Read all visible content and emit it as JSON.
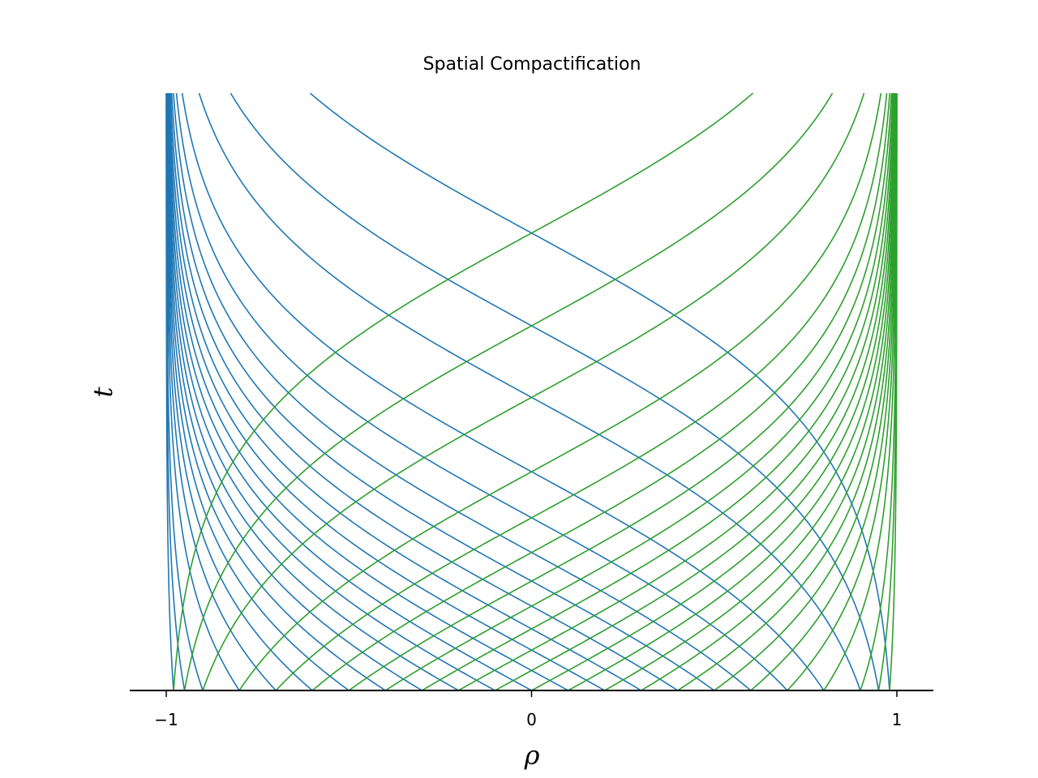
{
  "chart_data": {
    "type": "line",
    "title": "Spatial Compactification",
    "xlabel": "ρ",
    "ylabel": "t",
    "xlim": [
      -1.1,
      1.1
    ],
    "xticks": [
      {
        "value": -1,
        "label": "−1"
      },
      {
        "value": 0,
        "label": "0"
      },
      {
        "value": 1,
        "label": "1"
      }
    ],
    "yticks_visible": false,
    "grid": false,
    "legend": "none",
    "colors": {
      "left_moving": "#1f77b4",
      "right_moving": "#2ca02c"
    },
    "families": [
      {
        "direction": "left",
        "color": "#1f77b4",
        "rho_at_t0": [
          0.98,
          0.95,
          0.9,
          0.8,
          0.7,
          0.6,
          0.5,
          0.4,
          0.3,
          0.2,
          0.1,
          0.0,
          -0.1,
          -0.2,
          -0.3,
          -0.4,
          -0.5,
          -0.6,
          -0.7,
          -0.8,
          -0.9,
          -0.95,
          -0.98
        ]
      },
      {
        "direction": "right",
        "color": "#2ca02c",
        "rho_at_t0": [
          -0.98,
          -0.95,
          -0.9,
          -0.8,
          -0.7,
          -0.6,
          -0.5,
          -0.4,
          -0.3,
          -0.2,
          -0.1,
          0.0,
          0.1,
          0.2,
          0.3,
          0.4,
          0.5,
          0.6,
          0.7,
          0.8,
          0.9,
          0.95,
          0.98
        ]
      }
    ]
  }
}
